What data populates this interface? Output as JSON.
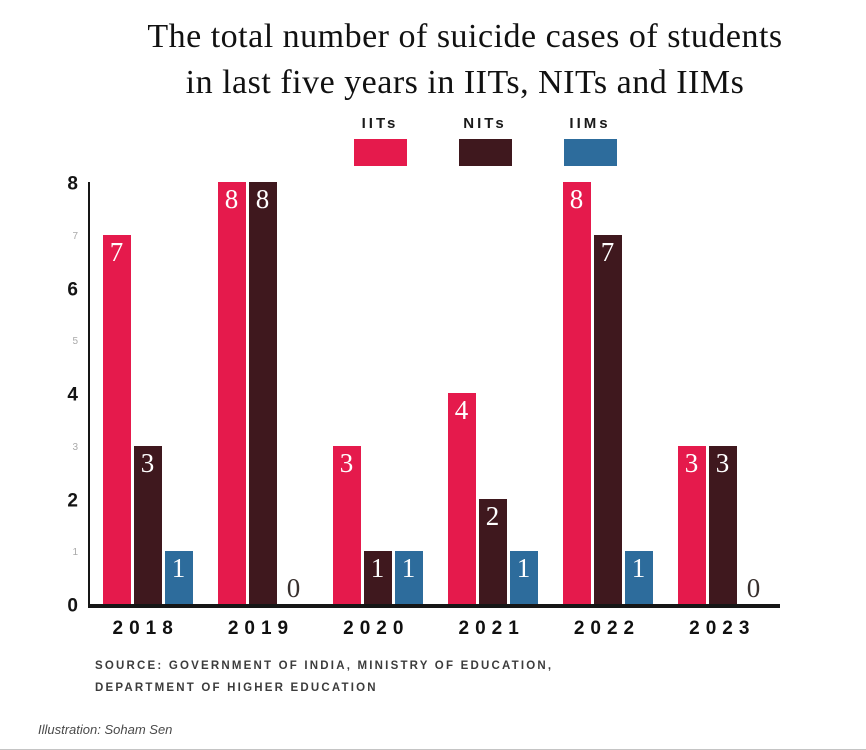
{
  "chart_data": {
    "type": "bar",
    "title": "The total number of suicide cases of students in last five years in IITs, NITs and IIMs",
    "title_lines": [
      "The total number of suicide cases of students",
      "in last five years in IITs, NITs and IIMs"
    ],
    "categories": [
      "2018",
      "2019",
      "2020",
      "2021",
      "2022",
      "2023"
    ],
    "series": [
      {
        "name": "IITs",
        "color": "#e51a4c",
        "values": [
          7,
          8,
          3,
          4,
          8,
          3
        ]
      },
      {
        "name": "NITs",
        "color": "#3f181e",
        "values": [
          3,
          8,
          1,
          2,
          7,
          3
        ]
      },
      {
        "name": "IIMs",
        "color": "#2d6c9c",
        "values": [
          1,
          0,
          1,
          1,
          1,
          0
        ]
      }
    ],
    "ylim": [
      0,
      8
    ],
    "yticks": [
      0,
      1,
      2,
      3,
      4,
      5,
      6,
      7,
      8
    ],
    "legend_position": "top",
    "grid": false,
    "xlabel": "",
    "ylabel": ""
  },
  "source": {
    "lines": [
      "SOURCE: GOVERNMENT OF INDIA, MINISTRY OF EDUCATION,",
      "DEPARTMENT OF HIGHER EDUCATION"
    ]
  },
  "credit": "Illustration: Soham Sen"
}
